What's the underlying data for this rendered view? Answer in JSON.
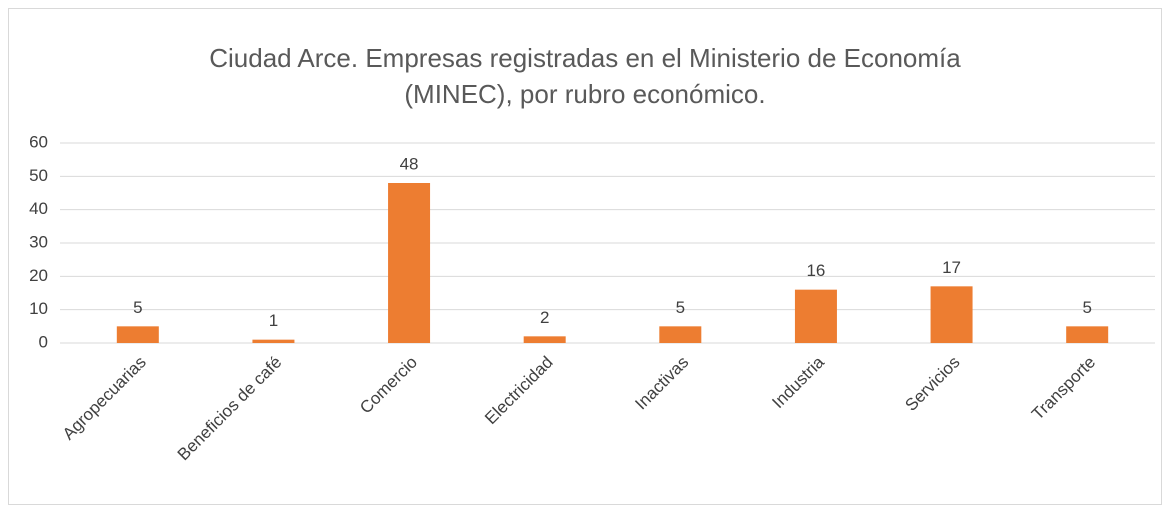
{
  "chart_data": {
    "type": "bar",
    "title": "Ciudad Arce. Empresas registradas en el Ministerio de Economía (MINEC), por rubro económico.",
    "categories": [
      "Agropecuarias",
      "Beneficios de café",
      "Comercio",
      "Electricidad",
      "Inactivas",
      "Industria",
      "Servicios",
      "Transporte"
    ],
    "values": [
      5,
      1,
      48,
      2,
      5,
      16,
      17,
      5
    ],
    "color": "#ed7d31",
    "ylim": [
      0,
      60
    ],
    "yticks": [
      0,
      10,
      20,
      30,
      40,
      50,
      60
    ],
    "grid": true,
    "data_labels": true
  }
}
